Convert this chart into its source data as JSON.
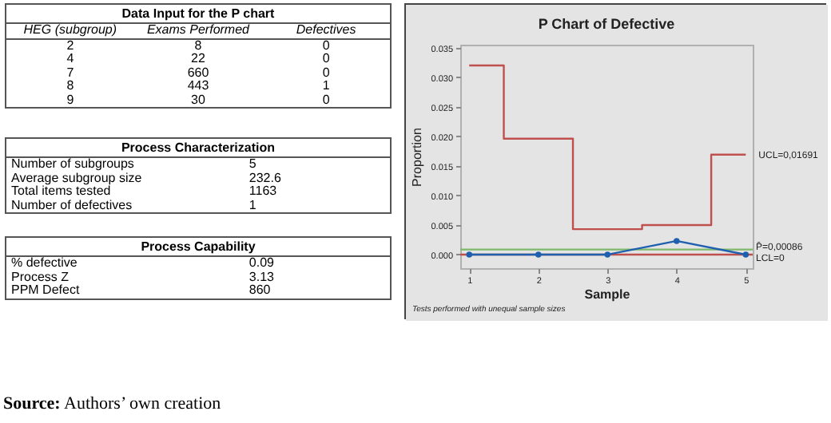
{
  "chart_data": [
    {
      "type": "other",
      "title": "Data Input for the P chart",
      "categories": [
        "HEG (subgroup)",
        "Exams Performed",
        "Defectives"
      ],
      "cell_labels": [
        [
          "2",
          "8",
          "0"
        ],
        [
          "4",
          "22",
          "0"
        ],
        [
          "7",
          "660",
          "0"
        ],
        [
          "8",
          "443",
          "1"
        ],
        [
          "9",
          "30",
          "0"
        ]
      ]
    },
    {
      "type": "other",
      "title": "Process Characterization",
      "cell_labels": [
        [
          "Number of subgroups",
          "5"
        ],
        [
          "Average subgroup size",
          "232.6"
        ],
        [
          "Total items tested",
          "1163"
        ],
        [
          "Number of defectives",
          "1"
        ]
      ]
    },
    {
      "type": "other",
      "title": "Process Capability",
      "cell_labels": [
        [
          "% defective",
          "0.09"
        ],
        [
          "Process Z",
          "3.13"
        ],
        [
          "PPM Defect",
          "860"
        ]
      ],
      "annotations": [
        "Source: Authors’ own creation"
      ]
    },
    {
      "type": "line",
      "title": "P Chart of Defective",
      "xlabel": "Sample",
      "ylabel": "Proportion",
      "x": [
        1,
        2,
        3,
        4,
        5
      ],
      "series": [
        {
          "name": "UCL=0,01691",
          "type": "step",
          "color": "#c0504d",
          "marker": "none",
          "values": [
            0.032,
            0.0196,
            0.0043,
            0.005,
            0.0169
          ]
        },
        {
          "color": "#1f5fb0",
          "values": [
            0,
            0,
            0,
            0.0023,
            0
          ]
        }
      ],
      "marker": "circle",
      "grid": false,
      "xlim": [
        0.87,
        5.1
      ],
      "xticks": [
        1,
        2,
        3,
        4,
        5
      ],
      "ylim": [
        -0.0023,
        0.0355
      ],
      "yticks": [
        {
          "value": 0,
          "label": "0.000"
        },
        {
          "value": 0.005,
          "label": "0.005"
        },
        {
          "value": 0.01,
          "label": "0.010"
        },
        {
          "value": 0.015,
          "label": "0.015"
        },
        {
          "value": 0.02,
          "label": "0.020"
        },
        {
          "value": 0.025,
          "label": "0.025"
        },
        {
          "value": 0.03,
          "label": "0.030"
        },
        {
          "value": 0.035,
          "label": "0.035"
        }
      ],
      "ref_lines": [
        {
          "axis": "y",
          "value": 0.00086,
          "label": "P̄=0,00086",
          "color": "#7fb86a"
        },
        {
          "axis": "y",
          "value": 0,
          "label": "LCL=0",
          "color": "#c0504d"
        }
      ],
      "annotations": [
        "Tests performed with unequal sample sizes"
      ]
    }
  ]
}
